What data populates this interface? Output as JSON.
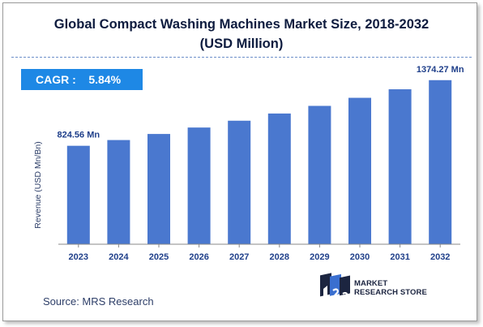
{
  "chart_data": {
    "type": "bar",
    "title": "Global Compact Washing Machines Market Size, 2018-2032",
    "subtitle": "(USD Million)",
    "ylabel": "Revenue (USD Mn/Bn)",
    "xlabel": "",
    "categories": [
      "2023",
      "2024",
      "2025",
      "2026",
      "2027",
      "2028",
      "2029",
      "2030",
      "2031",
      "2032"
    ],
    "values": [
      824.56,
      872.7,
      923.6,
      977.5,
      1034.6,
      1094.9,
      1158.8,
      1226.4,
      1297.9,
      1374.27
    ],
    "data_labels": [
      {
        "category": "2023",
        "text": "824.56 Mn"
      },
      {
        "category": "2032",
        "text": "1374.27 Mn"
      }
    ],
    "ylim": [
      0,
      1400
    ],
    "grid": false,
    "bar_color": "#4a78cf"
  },
  "cagr": {
    "label": "CAGR :",
    "value": "5.84%"
  },
  "source": "Source: MRS Research",
  "logo": {
    "line1": "MARKET",
    "line2": "RESEARCH STORE"
  },
  "colors": {
    "title": "#0d1b3e",
    "cagr_box": "#1e88e5",
    "bar": "#4a78cf"
  }
}
